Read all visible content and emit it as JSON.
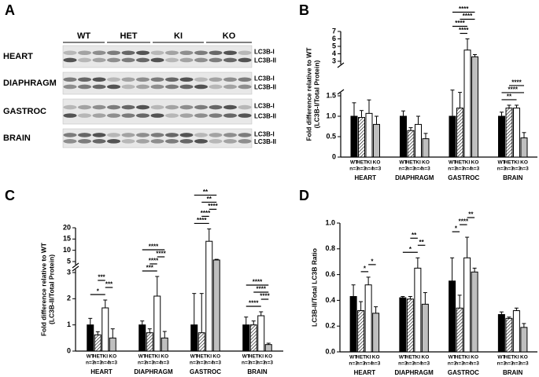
{
  "blot": {
    "panel_label": "A",
    "groups": [
      "WT",
      "HET",
      "KI",
      "KO"
    ],
    "rows": [
      "HEART",
      "DIAPHRAGM",
      "GASTROC",
      "BRAIN"
    ],
    "band_labels": [
      "LC3B-I",
      "LC3B-II"
    ]
  },
  "chart_data": [
    {
      "type": "bar",
      "panel_label": "B",
      "ylabel": [
        "Fold difference relative to WT",
        "(LC3B-I/Total Protein)"
      ],
      "categories": [
        "HEART",
        "DIAPHRAGM",
        "GASTROC",
        "BRAIN"
      ],
      "series": [
        {
          "name": "WT",
          "color": "#000000",
          "values": [
            1.0,
            1.0,
            1.0,
            1.0
          ],
          "errors": [
            0.33,
            0.13,
            0.75,
            0.1
          ],
          "n_labels": [
            "n=3",
            "n=3",
            "n=3",
            "n=3"
          ]
        },
        {
          "name": "HET",
          "color": "#000000",
          "pattern": "hatch",
          "values": [
            0.97,
            0.65,
            1.2,
            1.2
          ],
          "errors": [
            0.17,
            0.07,
            0.45,
            0.07
          ],
          "n_labels": [
            "n=3",
            "n=3",
            "n=3",
            "n=3"
          ]
        },
        {
          "name": "KI",
          "color": "#ffffff",
          "values": [
            1.07,
            0.8,
            4.5,
            1.2
          ],
          "errors": [
            0.33,
            0.2,
            1.5,
            0.07
          ],
          "n_labels": [
            "n=4",
            "n=4",
            "n=4",
            "n=3"
          ]
        },
        {
          "name": "KO",
          "color": "#bfbfbf",
          "values": [
            0.8,
            0.45,
            3.6,
            0.47
          ],
          "errors": [
            0.2,
            0.13,
            0.3,
            0.13
          ],
          "n_labels": [
            "n=3",
            "n=3",
            "n=3",
            "n=3"
          ]
        }
      ],
      "ylim": [
        0,
        1.5
      ],
      "yticks": [
        0,
        0.5,
        {
          "value": 1,
          "label": "1.0"
        },
        1.5
      ],
      "y_break": {
        "ylim": [
          3,
          7
        ],
        "yticks": [
          3,
          4,
          5,
          6,
          7
        ]
      },
      "significance": [
        {
          "category": "GASTROC",
          "between": [
            "HET",
            "KI"
          ],
          "label": "****"
        },
        {
          "category": "GASTROC",
          "between": [
            "WT",
            "KI"
          ],
          "label": "****"
        },
        {
          "category": "GASTROC",
          "between": [
            "HET",
            "KO"
          ],
          "label": "****"
        },
        {
          "category": "GASTROC",
          "between": [
            "WT",
            "KO"
          ],
          "label": "****"
        },
        {
          "category": "BRAIN",
          "between": [
            "WT",
            "KI"
          ],
          "label": "**"
        },
        {
          "category": "BRAIN",
          "between": [
            "WT",
            "KO"
          ],
          "label": "****"
        },
        {
          "category": "BRAIN",
          "between": [
            "HET",
            "KO"
          ],
          "label": "****"
        }
      ]
    },
    {
      "type": "bar",
      "panel_label": "C",
      "ylabel": [
        "Fold difference relative to WT",
        "(LC3B-II/Total Protein)"
      ],
      "categories": [
        "HEART",
        "DIAPHRAGM",
        "GASTROC",
        "BRAIN"
      ],
      "series": [
        {
          "name": "WT",
          "color": "#000000",
          "values": [
            1.0,
            1.0,
            1.0,
            1.0
          ],
          "errors": [
            0.25,
            0.15,
            1.2,
            0.3
          ],
          "n_labels": [
            "n=3",
            "n=3",
            "n=3",
            "n=3"
          ]
        },
        {
          "name": "HET",
          "color": "#000000",
          "pattern": "hatch",
          "values": [
            0.62,
            0.7,
            0.7,
            1.0
          ],
          "errors": [
            0.12,
            0.15,
            1.5,
            0.15
          ],
          "n_labels": [
            "n=3",
            "n=3",
            "n=3",
            "n=3"
          ]
        },
        {
          "name": "KI",
          "color": "#ffffff",
          "values": [
            1.65,
            2.1,
            14,
            1.35
          ],
          "errors": [
            0.3,
            0.75,
            5.5,
            0.15
          ],
          "n_labels": [
            "n=4",
            "n=4",
            "n=4",
            "n=3"
          ]
        },
        {
          "name": "KO",
          "color": "#bfbfbf",
          "values": [
            0.5,
            0.5,
            5.7,
            0.25
          ],
          "errors": [
            0.35,
            0.25,
            0.3,
            0.05
          ],
          "n_labels": [
            "n=3",
            "n=3",
            "n=3",
            "n=3"
          ]
        }
      ],
      "ylim": [
        0,
        3
      ],
      "yticks": [
        0,
        1,
        2,
        3
      ],
      "y_break": {
        "ylim": [
          5,
          20
        ],
        "yticks": [
          5,
          10,
          15,
          20
        ]
      },
      "significance": [
        {
          "category": "HEART",
          "between": [
            "WT",
            "KI"
          ],
          "label": "*"
        },
        {
          "category": "HEART",
          "between": [
            "KI",
            "KO"
          ],
          "label": "***"
        },
        {
          "category": "HEART",
          "between": [
            "HET",
            "KI"
          ],
          "label": "***"
        },
        {
          "category": "DIAPHRAGM",
          "between": [
            "WT",
            "KI"
          ],
          "label": "***"
        },
        {
          "category": "DIAPHRAGM",
          "between": [
            "HET",
            "KI"
          ],
          "label": "****"
        },
        {
          "category": "DIAPHRAGM",
          "between": [
            "KI",
            "KO"
          ],
          "label": "****"
        },
        {
          "category": "DIAPHRAGM",
          "between": [
            "WT",
            "KO"
          ],
          "label": "****"
        },
        {
          "category": "GASTROC",
          "between": [
            "WT",
            "KI"
          ],
          "label": "****"
        },
        {
          "category": "GASTROC",
          "between": [
            "HET",
            "KI"
          ],
          "label": "****"
        },
        {
          "category": "GASTROC",
          "between": [
            "KI",
            "KO"
          ],
          "label": "****"
        },
        {
          "category": "GASTROC",
          "between": [
            "HET",
            "KO"
          ],
          "label": "**"
        },
        {
          "category": "GASTROC",
          "between": [
            "WT",
            "KO"
          ],
          "label": "**"
        },
        {
          "category": "BRAIN",
          "between": [
            "WT",
            "KI"
          ],
          "label": "****"
        },
        {
          "category": "BRAIN",
          "between": [
            "KI",
            "KO"
          ],
          "label": "****"
        },
        {
          "category": "BRAIN",
          "between": [
            "HET",
            "KO"
          ],
          "label": "****"
        },
        {
          "category": "BRAIN",
          "between": [
            "WT",
            "KO"
          ],
          "label": "****"
        }
      ]
    },
    {
      "type": "bar",
      "panel_label": "D",
      "ylabel": [
        "LC3B-II/Total LC3B Ratio"
      ],
      "categories": [
        "HEART",
        "DIAPHRAGM",
        "GASTROC",
        "BRAIN"
      ],
      "series": [
        {
          "name": "WT",
          "color": "#000000",
          "values": [
            0.43,
            0.42,
            0.55,
            0.29
          ],
          "errors": [
            0.09,
            0.01,
            0.18,
            0.02
          ],
          "n_labels": [
            "n=3",
            "n=3",
            "n=3",
            "n=3"
          ]
        },
        {
          "name": "HET",
          "color": "#000000",
          "pattern": "hatch",
          "values": [
            0.32,
            0.41,
            0.34,
            0.26
          ],
          "errors": [
            0.07,
            0.02,
            0.1,
            0.01
          ],
          "n_labels": [
            "n=3",
            "n=3",
            "n=3",
            "n=3"
          ]
        },
        {
          "name": "KI",
          "color": "#ffffff",
          "values": [
            0.52,
            0.65,
            0.73,
            0.32
          ],
          "errors": [
            0.06,
            0.08,
            0.16,
            0.02
          ],
          "n_labels": [
            "n=4",
            "n=4",
            "n=4",
            "n=3"
          ]
        },
        {
          "name": "KO",
          "color": "#bfbfbf",
          "values": [
            0.3,
            0.37,
            0.62,
            0.19
          ],
          "errors": [
            0.05,
            0.09,
            0.03,
            0.03
          ],
          "n_labels": [
            "n=3",
            "n=3",
            "n=3",
            "n=3"
          ]
        }
      ],
      "ylim": [
        0,
        1
      ],
      "yticks": [
        {
          "value": 0,
          "label": "0.0"
        },
        0.2,
        0.4,
        0.6,
        0.8,
        {
          "value": 1,
          "label": "1.0"
        }
      ],
      "significance": [
        {
          "category": "HEART",
          "between": [
            "HET",
            "KI"
          ],
          "label": "*"
        },
        {
          "category": "HEART",
          "between": [
            "KI",
            "KO"
          ],
          "label": "*"
        },
        {
          "category": "DIAPHRAGM",
          "between": [
            "WT",
            "KI"
          ],
          "label": "*"
        },
        {
          "category": "DIAPHRAGM",
          "between": [
            "KI",
            "KO"
          ],
          "label": "**"
        },
        {
          "category": "DIAPHRAGM",
          "between": [
            "HET",
            "KI"
          ],
          "label": "**"
        },
        {
          "category": "GASTROC",
          "between": [
            "WT",
            "HET"
          ],
          "label": "*"
        },
        {
          "category": "GASTROC",
          "between": [
            "HET",
            "KI"
          ],
          "label": "****"
        },
        {
          "category": "GASTROC",
          "between": [
            "KI",
            "KO"
          ],
          "label": "**"
        }
      ]
    }
  ]
}
